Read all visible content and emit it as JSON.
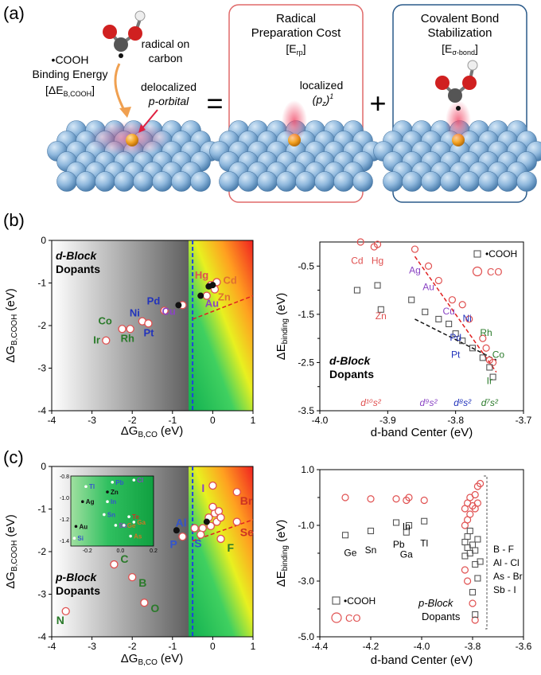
{
  "panel_a": {
    "label": "(a)",
    "binding_energy": {
      "line1": "•COOH",
      "line2": "Binding Energy",
      "line3": "[ΔE",
      "sub": "B,COOH",
      "end": "]"
    },
    "radical_on": "radical on",
    "radical_carbon": "carbon",
    "delocalized": "delocalized",
    "p_orbital": "p-orbital",
    "equals": "=",
    "plus": "+",
    "box1_title1": "Radical",
    "box1_title2": "Preparation Cost",
    "box1_sym": "[E",
    "box1_sub": "rp",
    "box1_end": "]",
    "localized": "localized",
    "localized_formula": "(p",
    "localized_sub": "z",
    "localized_end": ")",
    "localized_sup": "1",
    "box2_title1": "Covalent Bond",
    "box2_title2": "Stabilization",
    "box2_sym": "[E",
    "box2_sub": "σ-bond",
    "box2_end": "]",
    "colors": {
      "box1_border": "#e06a6a",
      "box2_border": "#2a5a8a",
      "surface": "#8fb8dd",
      "dopant": "#f2a020",
      "highlight": "#e04050"
    }
  },
  "panel_b_label": "(b)",
  "panel_c_label": "(c)",
  "chart_data": [
    {
      "type": "scatter",
      "panel": "b-left",
      "xlabel": "ΔG",
      "xlabel_sub": "B,CO",
      "xlabel_unit": "(eV)",
      "ylabel": "ΔG",
      "ylabel_sub": "B,COOH",
      "ylabel_unit": "(eV)",
      "xlim": [
        -4,
        1
      ],
      "ylim": [
        -4,
        0
      ],
      "xticks": [
        "-4",
        "-3",
        "-2",
        "-1",
        "0",
        "1"
      ],
      "yticks": [
        "0",
        "-1",
        "-2",
        "-3",
        "-4"
      ],
      "block_title1": "d-Block",
      "block_title2": "Dopants",
      "points": [
        {
          "label": "Ir",
          "x": -2.65,
          "y": -2.35,
          "color": "#2a7a2a"
        },
        {
          "label": "Co",
          "x": -2.25,
          "y": -2.08,
          "color": "#2a7a2a"
        },
        {
          "label": "Rh",
          "x": -2.05,
          "y": -2.08,
          "color": "#2a7a2a"
        },
        {
          "label": "Ni",
          "x": -1.75,
          "y": -1.9,
          "color": "#2233bb"
        },
        {
          "label": "Pt",
          "x": -1.6,
          "y": -1.95,
          "color": "#2233bb"
        },
        {
          "label": "Pd",
          "x": -1.2,
          "y": -1.65,
          "color": "#2233bb"
        },
        {
          "label": "Cu",
          "x": -0.75,
          "y": -1.52,
          "color": "#8a44c4"
        },
        {
          "label": "Au",
          "x": -0.15,
          "y": -1.3,
          "color": "#8a44c4"
        },
        {
          "label": "Hg",
          "x": -0.05,
          "y": -1.05,
          "color": "#e05050"
        },
        {
          "label": "Zn",
          "x": 0.05,
          "y": -1.15,
          "color": "#e07030"
        },
        {
          "label": "Cd",
          "x": 0.1,
          "y": -0.98,
          "color": "#e07030"
        }
      ],
      "black_points": [
        {
          "x": -0.85,
          "y": -1.52
        },
        {
          "x": -0.3,
          "y": -1.3
        },
        {
          "x": -0.1,
          "y": -1.08
        },
        {
          "x": 0.0,
          "y": -1.05
        }
      ],
      "divider_x": -0.5,
      "trend": [
        [
          -0.5,
          -1.85
        ],
        [
          1.0,
          -1.3
        ]
      ]
    },
    {
      "type": "scatter",
      "panel": "b-right",
      "xlabel": "d-band Center (eV)",
      "ylabel": "ΔE",
      "ylabel_sub": "binding",
      "ylabel_unit": "(eV)",
      "xlim": [
        -4.0,
        -3.7
      ],
      "ylim": [
        -3.5,
        0.0
      ],
      "xticks": [
        "-4.0",
        "-3.9",
        "-3.8",
        "-3.7"
      ],
      "yticks": [
        "-0.5",
        "-1.5",
        "-2.5",
        "-3.5"
      ],
      "legend": [
        "•COOH",
        "CO"
      ],
      "legend_placement": "top-right",
      "block_title1": "d-Block",
      "block_title2": "Dopants",
      "groups": [
        {
          "text": "d¹⁰s²",
          "x": -3.925,
          "color": "#e05050"
        },
        {
          "text": "d⁹s²",
          "x": -3.84,
          "color": "#8a44c4"
        },
        {
          "text": "d⁸s²",
          "x": -3.79,
          "color": "#2233bb"
        },
        {
          "text": "d⁷s²",
          "x": -3.75,
          "color": "#2a7a2a"
        }
      ],
      "labels": [
        {
          "text": "Cd",
          "x": -3.945,
          "y": -0.45,
          "color": "#e05050"
        },
        {
          "text": "Hg",
          "x": -3.915,
          "y": -0.45,
          "color": "#e05050"
        },
        {
          "text": "Zn",
          "x": -3.91,
          "y": -1.6,
          "color": "#e05050"
        },
        {
          "text": "Ag",
          "x": -3.86,
          "y": -0.65,
          "color": "#8a44c4"
        },
        {
          "text": "Au",
          "x": -3.84,
          "y": -1.0,
          "color": "#8a44c4"
        },
        {
          "text": "Cu",
          "x": -3.81,
          "y": -1.5,
          "color": "#8a44c4"
        },
        {
          "text": "Ni",
          "x": -3.783,
          "y": -1.65,
          "color": "#2233bb"
        },
        {
          "text": "Pd",
          "x": -3.8,
          "y": -2.05,
          "color": "#2233bb"
        },
        {
          "text": "Pt",
          "x": -3.8,
          "y": -2.4,
          "color": "#2233bb"
        },
        {
          "text": "Rh",
          "x": -3.755,
          "y": -1.95,
          "color": "#2a7a2a"
        },
        {
          "text": "Co",
          "x": -3.737,
          "y": -2.4,
          "color": "#2a7a2a"
        },
        {
          "text": "Ir",
          "x": -3.75,
          "y": -2.95,
          "color": "#2a7a2a"
        }
      ],
      "series": [
        {
          "name": "CO",
          "marker": "circle",
          "color": "#e05050",
          "x": [
            -3.94,
            -3.92,
            -3.915,
            -3.86,
            -3.84,
            -3.825,
            -3.805,
            -3.79,
            -3.78,
            -3.76,
            -3.755,
            -3.75,
            -3.745
          ],
          "y": [
            0.0,
            -0.1,
            -0.05,
            -0.15,
            -0.5,
            -0.8,
            -1.2,
            -1.3,
            -1.6,
            -2.0,
            -2.2,
            -2.45,
            -2.5
          ]
        },
        {
          "name": "•COOH",
          "marker": "square",
          "color": "#555555",
          "x": [
            -3.945,
            -3.915,
            -3.91,
            -3.865,
            -3.845,
            -3.825,
            -3.81,
            -3.8,
            -3.79,
            -3.775,
            -3.76,
            -3.75,
            -3.745
          ],
          "y": [
            -1.0,
            -0.9,
            -1.4,
            -1.2,
            -1.45,
            -1.6,
            -1.7,
            -1.9,
            -2.05,
            -2.2,
            -2.4,
            -2.6,
            -2.8
          ]
        }
      ],
      "trend_co": [
        [
          -3.86,
          -0.3
        ],
        [
          -3.74,
          -2.7
        ]
      ],
      "trend_cooh": [
        [
          -3.86,
          -1.6
        ],
        [
          -3.74,
          -2.45
        ]
      ]
    },
    {
      "type": "scatter",
      "panel": "c-left",
      "xlabel": "ΔG",
      "xlabel_sub": "B,CO",
      "xlabel_unit": "(eV)",
      "ylabel": "ΔG",
      "ylabel_sub": "B,COOH",
      "ylabel_unit": "(eV)",
      "xlim": [
        -4,
        1
      ],
      "ylim": [
        -4,
        0
      ],
      "xticks": [
        "-4",
        "-3",
        "-2",
        "-1",
        "0",
        "1"
      ],
      "yticks": [
        "0",
        "-1",
        "-2",
        "-3",
        "-4"
      ],
      "block_title1": "p-Block",
      "block_title2": "Dopants",
      "points": [
        {
          "label": "N",
          "x": -3.65,
          "y": -3.4,
          "color": "#2a7a2a"
        },
        {
          "label": "C",
          "x": -2.45,
          "y": -2.3,
          "color": "#2a7a2a"
        },
        {
          "label": "B",
          "x": -2.0,
          "y": -2.6,
          "color": "#2a7a2a"
        },
        {
          "label": "O",
          "x": -1.7,
          "y": -3.2,
          "color": "#2a7a2a"
        },
        {
          "label": "P",
          "x": -0.75,
          "y": -1.65,
          "color": "#3355cc"
        },
        {
          "label": "Al",
          "x": -0.45,
          "y": -1.45,
          "color": "#3355cc"
        },
        {
          "label": "S",
          "x": -0.3,
          "y": -1.6,
          "color": "#3355cc"
        },
        {
          "label": "I",
          "x": 0.0,
          "y": -0.45,
          "color": "#8a44c4"
        },
        {
          "label": "F",
          "x": 0.2,
          "y": -1.7,
          "color": "#2a7a2a"
        },
        {
          "label": "Br",
          "x": 0.6,
          "y": -0.6,
          "color": "#cc3322"
        },
        {
          "label": "Se",
          "x": 0.6,
          "y": -1.3,
          "color": "#cc3322"
        }
      ],
      "extra_points": [
        {
          "x": -0.1,
          "y": -1.2
        },
        {
          "x": 0.05,
          "y": -1.1
        },
        {
          "x": 0.15,
          "y": -1.05
        },
        {
          "x": -0.05,
          "y": -1.4
        },
        {
          "x": 0.1,
          "y": -1.3
        },
        {
          "x": -0.25,
          "y": -1.45
        },
        {
          "x": 0.0,
          "y": -0.95
        },
        {
          "x": 0.2,
          "y": -1.2
        }
      ],
      "black_points": [
        {
          "x": -0.9,
          "y": -1.5
        },
        {
          "x": -0.15,
          "y": -1.3
        }
      ],
      "divider_x": -0.5,
      "trend": [
        [
          -0.5,
          -1.75
        ],
        [
          1.0,
          -1.25
        ]
      ],
      "inset": {
        "xlim": [
          -0.3,
          0.2
        ],
        "ylim": [
          -1.45,
          -0.8
        ],
        "xticks": [
          "-0.2",
          "0.0",
          "0.2"
        ],
        "yticks": [
          "-0.8",
          "-1.0",
          "-1.2",
          "-1.4"
        ],
        "labels": [
          {
            "text": "Tl",
            "x": -0.18,
            "y": -0.92,
            "color": "#3355cc"
          },
          {
            "text": "Pb",
            "x": -0.02,
            "y": -0.88,
            "color": "#3355cc"
          },
          {
            "text": "Cl",
            "x": 0.11,
            "y": -0.86,
            "color": "#8a44c4"
          },
          {
            "text": "Zn",
            "x": -0.05,
            "y": -0.97,
            "color": "#111111"
          },
          {
            "text": "Ag",
            "x": -0.2,
            "y": -1.06,
            "color": "#111111"
          },
          {
            "text": "In",
            "x": -0.05,
            "y": -1.06,
            "color": "#3355cc"
          },
          {
            "text": "Sn",
            "x": -0.07,
            "y": -1.18,
            "color": "#3355cc"
          },
          {
            "text": "Te",
            "x": 0.08,
            "y": -1.2,
            "color": "#cc3322"
          },
          {
            "text": "Au",
            "x": -0.24,
            "y": -1.29,
            "color": "#111111"
          },
          {
            "text": "Sb",
            "x": 0.0,
            "y": -1.28,
            "color": "#8a44c4"
          },
          {
            "text": "Ge",
            "x": 0.05,
            "y": -1.28,
            "color": "#cc7722"
          },
          {
            "text": "Ga",
            "x": 0.11,
            "y": -1.25,
            "color": "#cc7722"
          },
          {
            "text": "Si",
            "x": -0.25,
            "y": -1.4,
            "color": "#3355cc"
          },
          {
            "text": "As",
            "x": 0.09,
            "y": -1.38,
            "color": "#cc7722"
          }
        ]
      }
    },
    {
      "type": "scatter",
      "panel": "c-right",
      "xlabel": "d-band Center (eV)",
      "ylabel": "ΔE",
      "ylabel_sub": "binding",
      "ylabel_unit": "(eV)",
      "xlim": [
        -4.4,
        -3.6
      ],
      "ylim": [
        -5.0,
        1.0
      ],
      "xticks": [
        "-4.4",
        "-4.2",
        "-4.0",
        "-3.8",
        "-3.6"
      ],
      "yticks": [
        "1.0",
        "-1.0",
        "-3.0",
        "-5.0"
      ],
      "legend": [
        "•COOH",
        "CO"
      ],
      "legend_placement": "bottom-left",
      "block_title1": "p-Block",
      "block_title2": "Dopants",
      "pairs": [
        "B - F",
        "Al - Cl",
        "As - Br",
        "Sb - I"
      ],
      "labels": [
        {
          "text": "Ge",
          "x": -4.28,
          "y": -1.7
        },
        {
          "text": "Sn",
          "x": -4.2,
          "y": -1.6
        },
        {
          "text": "Pb",
          "x": -4.09,
          "y": -1.4
        },
        {
          "text": "In",
          "x": -4.06,
          "y": -0.75
        },
        {
          "text": "Ga",
          "x": -4.06,
          "y": -1.75
        },
        {
          "text": "Tl",
          "x": -3.99,
          "y": -1.35
        }
      ],
      "series": [
        {
          "name": "CO",
          "marker": "circle",
          "color": "#e05050",
          "x": [
            -4.3,
            -4.2,
            -4.1,
            -4.06,
            -4.05,
            -3.99,
            -3.83,
            -3.82,
            -3.81,
            -3.8,
            -3.79,
            -3.78,
            -3.77,
            -3.83,
            -3.82,
            -3.81,
            -3.79,
            -3.78,
            -3.83,
            -3.82,
            -3.8,
            -3.79
          ],
          "y": [
            0.0,
            -0.05,
            -0.05,
            -0.1,
            0.0,
            -0.1,
            -0.4,
            -0.2,
            0.0,
            -0.3,
            0.1,
            0.4,
            0.5,
            -1.0,
            -0.8,
            -0.6,
            -0.4,
            -0.2,
            -2.6,
            -3.0,
            -3.8,
            -4.4
          ]
        },
        {
          "name": "•COOH",
          "marker": "square",
          "color": "#555555",
          "x": [
            -4.3,
            -4.2,
            -4.1,
            -4.06,
            -4.05,
            -3.99,
            -3.83,
            -3.82,
            -3.81,
            -3.8,
            -3.79,
            -3.78,
            -3.77,
            -3.83,
            -3.82,
            -3.81,
            -3.79,
            -3.78,
            -3.8,
            -3.79
          ],
          "y": [
            -1.35,
            -1.2,
            -0.9,
            -1.25,
            -1.0,
            -0.85,
            -1.6,
            -1.4,
            -1.2,
            -1.7,
            -1.9,
            -1.5,
            -2.3,
            -2.1,
            -1.8,
            -2.0,
            -2.4,
            -2.9,
            -3.4,
            -4.2
          ]
        }
      ]
    }
  ]
}
